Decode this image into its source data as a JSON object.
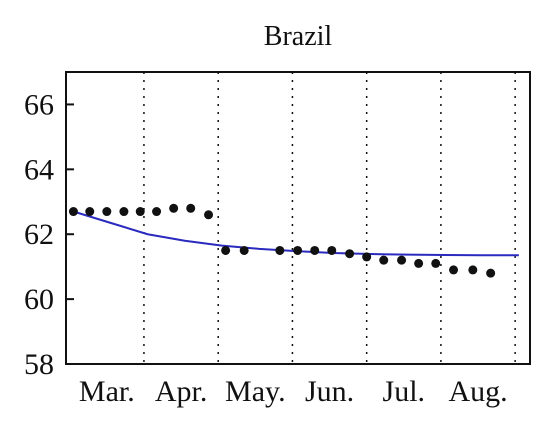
{
  "chart_data": {
    "type": "scatter",
    "title": "Brazil",
    "xlabel": "",
    "ylabel": "",
    "ylim": [
      58,
      67
    ],
    "yticks": [
      58,
      60,
      62,
      64,
      66
    ],
    "months": [
      "Mar.",
      "Apr.",
      "May.",
      "Jun.",
      "Jul.",
      "Aug."
    ],
    "grid": "vertical dotted lines at month boundaries",
    "series": [
      {
        "type": "scatter",
        "color": "#111111",
        "x": [
          0.0,
          0.22,
          0.45,
          0.68,
          0.9,
          1.12,
          1.35,
          1.58,
          1.82,
          2.05,
          2.3,
          2.78,
          3.02,
          3.25,
          3.48,
          3.72,
          3.95,
          4.18,
          4.42,
          4.65,
          4.88,
          5.12,
          5.38,
          5.62
        ],
        "y": [
          62.7,
          62.7,
          62.7,
          62.7,
          62.7,
          62.7,
          62.8,
          62.8,
          62.6,
          61.5,
          61.5,
          61.5,
          61.5,
          61.5,
          61.5,
          61.4,
          61.3,
          61.2,
          61.2,
          61.1,
          61.1,
          60.9,
          60.9,
          60.8
        ]
      },
      {
        "type": "line",
        "color": "#2a2abf",
        "x": [
          0.0,
          0.5,
          1.0,
          1.5,
          2.0,
          2.5,
          3.0,
          3.5,
          4.0,
          4.5,
          5.0,
          5.5,
          6.0
        ],
        "y": [
          62.7,
          62.35,
          62.0,
          61.8,
          61.65,
          61.55,
          61.48,
          61.42,
          61.39,
          61.37,
          61.36,
          61.35,
          61.35
        ]
      }
    ]
  }
}
